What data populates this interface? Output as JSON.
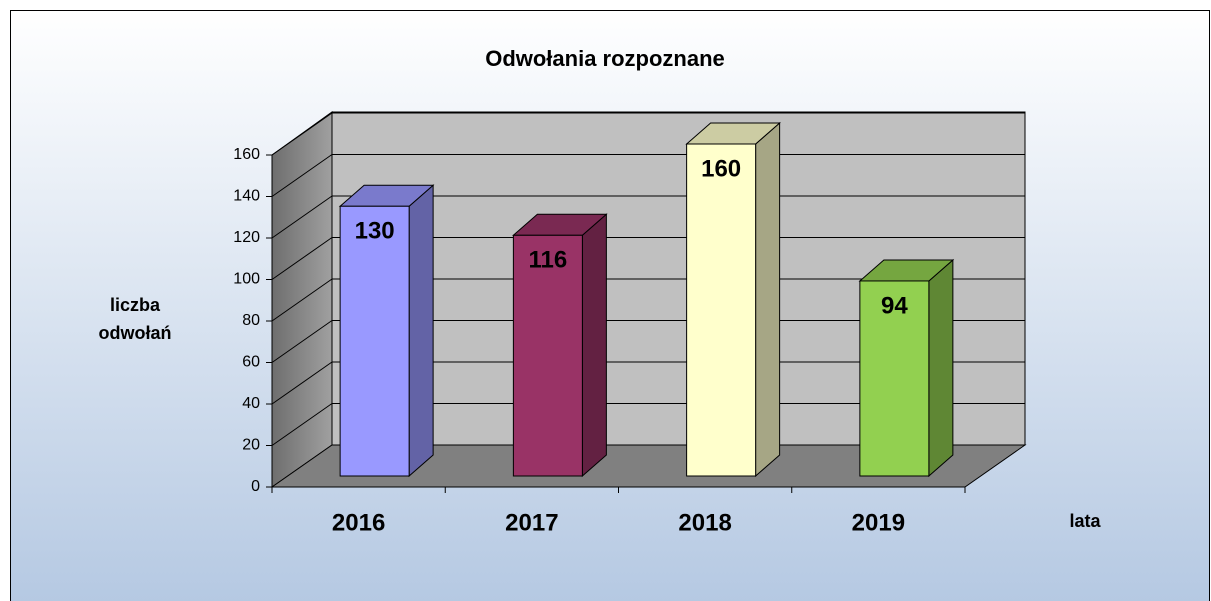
{
  "chart_data": {
    "type": "bar3d",
    "title": "Odwołania rozpoznane",
    "y_label": [
      "liczba",
      "odwołań"
    ],
    "x_label": "lata",
    "categories": [
      "2016",
      "2017",
      "2018",
      "2019"
    ],
    "values": [
      130,
      116,
      160,
      94
    ],
    "colors": [
      "#9999ff",
      "#993366",
      "#ffffcc",
      "#92d050"
    ],
    "ylim": [
      0,
      160
    ],
    "yticks": [
      0,
      20,
      40,
      60,
      80,
      100,
      120,
      140,
      160
    ],
    "grid": true
  }
}
